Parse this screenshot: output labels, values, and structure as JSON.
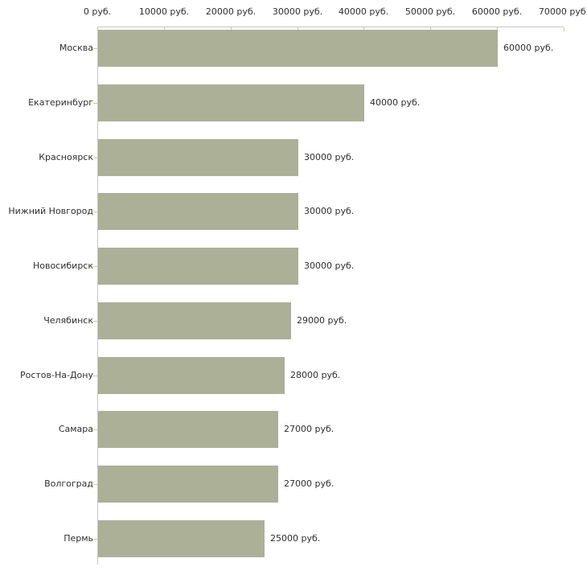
{
  "chart_data": {
    "type": "bar",
    "orientation": "horizontal",
    "title": "",
    "xlabel": "",
    "ylabel": "",
    "unit": "руб.",
    "xlim": [
      0,
      70000
    ],
    "grid": false,
    "legend": false,
    "categories": [
      "Москва",
      "Екатеринбург",
      "Красноярск",
      "Нижний Новгород",
      "Новосибирск",
      "Челябинск",
      "Ростов-На-Дону",
      "Самара",
      "Волгоград",
      "Пермь"
    ],
    "values": [
      60000,
      40000,
      30000,
      30000,
      30000,
      29000,
      28000,
      27000,
      27000,
      25000
    ],
    "value_labels": [
      "60000 руб.",
      "40000 руб.",
      "30000 руб.",
      "30000 руб.",
      "30000 руб.",
      "29000 руб.",
      "28000 руб.",
      "27000 руб.",
      "27000 руб.",
      "25000 руб."
    ],
    "x_ticks": [
      0,
      10000,
      20000,
      30000,
      40000,
      50000,
      60000,
      70000
    ],
    "x_tick_labels": [
      "0 руб.",
      "10000 руб.",
      "20000 руб.",
      "30000 руб.",
      "40000 руб.",
      "50000 руб.",
      "60000 руб.",
      "70000 руб."
    ],
    "colors": {
      "bar": "#abb097",
      "axis_line": "#c6c6c3",
      "tick": "#cfca9e",
      "text": "#2e2e2e",
      "background": "#ffffff"
    }
  }
}
